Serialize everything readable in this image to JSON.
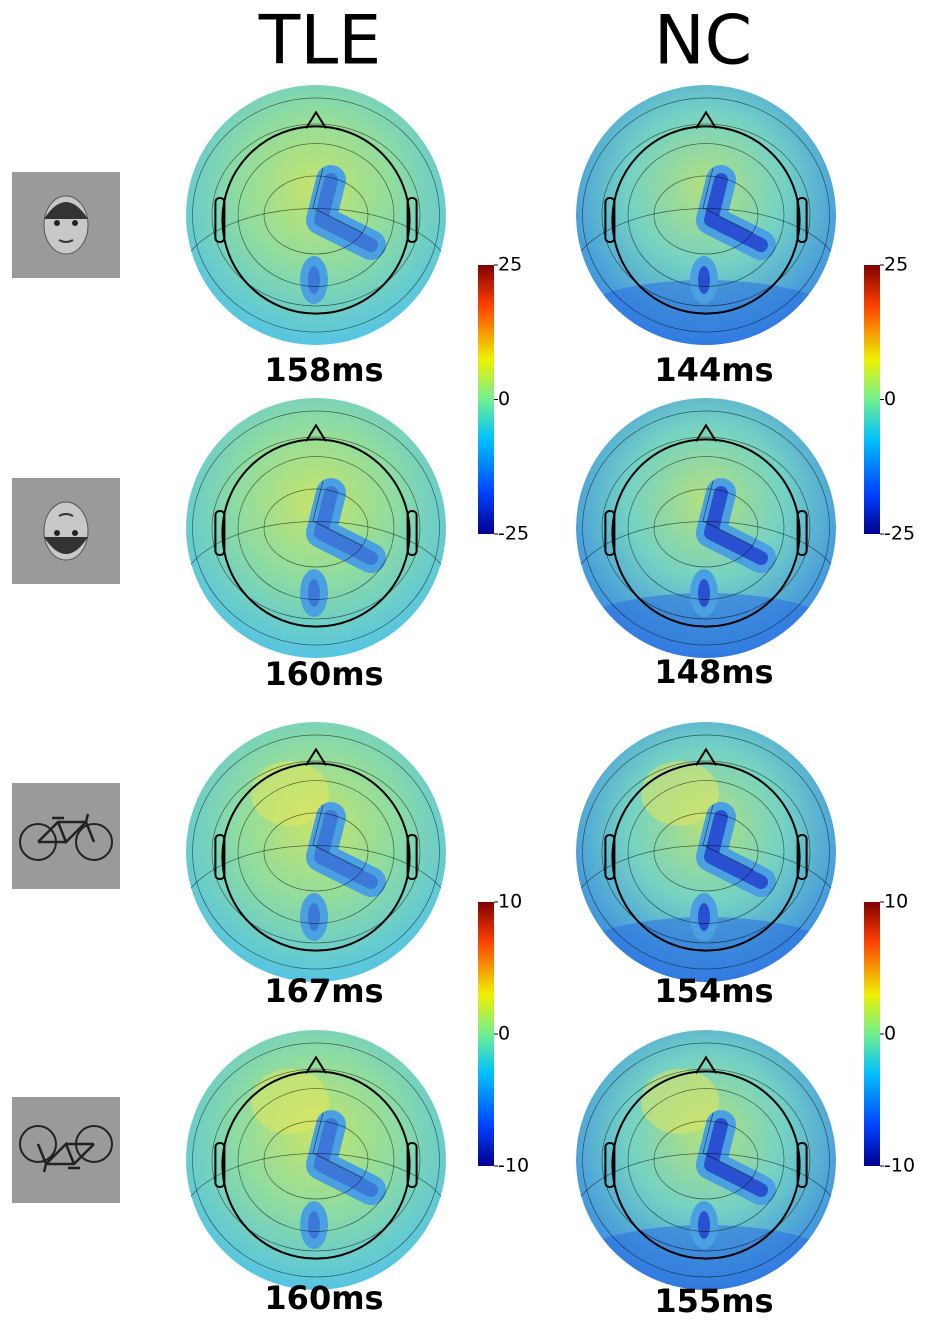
{
  "columns": [
    "TLE",
    "NC"
  ],
  "rows": [
    {
      "latencies": [
        "158ms",
        "144ms"
      ],
      "colorbar": 0
    },
    {
      "latencies": [
        "160ms",
        "148ms"
      ],
      "colorbar": 0
    },
    {
      "latencies": [
        "167ms",
        "154ms"
      ],
      "colorbar": 1
    },
    {
      "latencies": [
        "160ms",
        "155ms"
      ],
      "colorbar": 1
    }
  ],
  "colorbars": [
    {
      "range": [
        -25,
        25
      ],
      "ticks": [
        25,
        0,
        -25
      ]
    },
    {
      "range": [
        -10,
        10
      ],
      "ticks": [
        10,
        0,
        -10
      ]
    }
  ]
}
